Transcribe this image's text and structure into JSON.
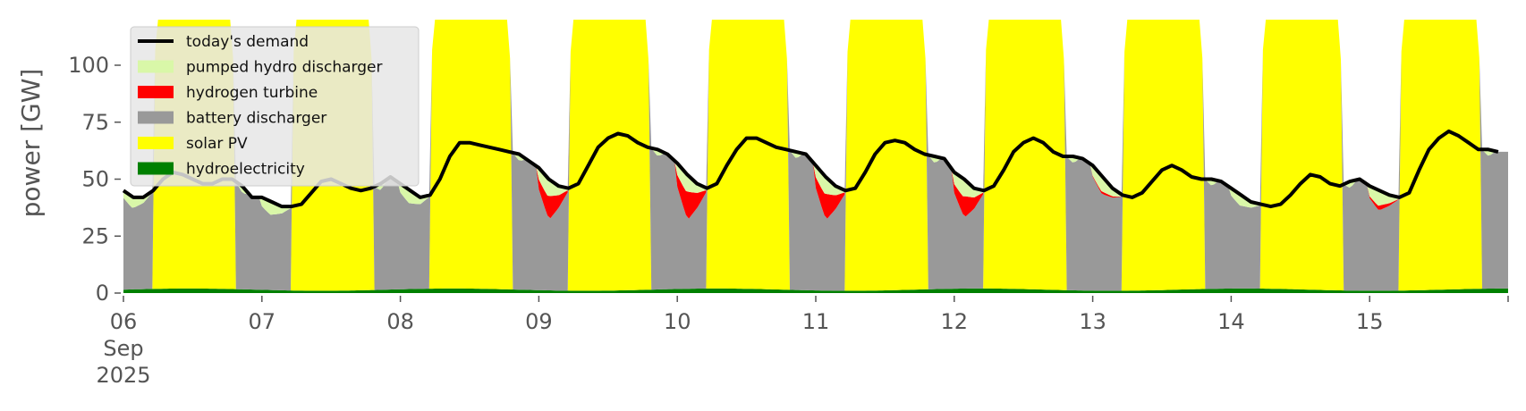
{
  "chart_data": {
    "type": "area",
    "title": "",
    "xlabel": "",
    "ylabel": "power [GW]",
    "ylim": [
      0,
      120
    ],
    "yticks": [
      0,
      25,
      50,
      75,
      100
    ],
    "x_start": "2025-09-06",
    "x_end": "2025-09-16",
    "x_tick_labels": [
      {
        "day": "06",
        "month": "Sep",
        "year": "2025"
      },
      {
        "day": "07"
      },
      {
        "day": "08"
      },
      {
        "day": "09"
      },
      {
        "day": "10"
      },
      {
        "day": "11"
      },
      {
        "day": "12"
      },
      {
        "day": "13"
      },
      {
        "day": "14"
      },
      {
        "day": "15"
      }
    ],
    "grid": false,
    "legend_position": "top-left",
    "stack_order": [
      "hydroelectricity",
      "solar PV",
      "battery discharger",
      "hydrogen turbine",
      "pumped hydro discharger"
    ],
    "series": [
      {
        "name": "today's demand",
        "kind": "line",
        "color": "#000000"
      },
      {
        "name": "pumped hydro discharger",
        "kind": "area",
        "color": "#d9f7a8"
      },
      {
        "name": "hydrogen turbine",
        "kind": "area",
        "color": "#ff0000"
      },
      {
        "name": "battery discharger",
        "kind": "area",
        "color": "#999999"
      },
      {
        "name": "solar PV",
        "kind": "area",
        "color": "#ffff00"
      },
      {
        "name": "hydroelectricity",
        "kind": "area",
        "color": "#008000"
      }
    ],
    "daily": [
      {
        "date": "2025-09-06",
        "demand": [
          45,
          42,
          42,
          45,
          50,
          53,
          52,
          50,
          48,
          48,
          50,
          50,
          47,
          42
        ],
        "hydrogen": 0,
        "pumped": 5
      },
      {
        "date": "2025-09-07",
        "demand": [
          42,
          40,
          38,
          38,
          39,
          44,
          49,
          50,
          48,
          46,
          45,
          46,
          48,
          51
        ],
        "hydrogen": 0,
        "pumped": 6
      },
      {
        "date": "2025-09-08",
        "demand": [
          48,
          45,
          42,
          43,
          50,
          60,
          66,
          66,
          65,
          64,
          63,
          62,
          61,
          58
        ],
        "hydrogen": 0,
        "pumped": 6
      },
      {
        "date": "2025-09-09",
        "demand": [
          55,
          50,
          47,
          46,
          48,
          56,
          64,
          68,
          70,
          69,
          66,
          64,
          63,
          61
        ],
        "hydrogen": 10,
        "pumped": 8
      },
      {
        "date": "2025-09-10",
        "demand": [
          57,
          52,
          48,
          46,
          48,
          56,
          63,
          68,
          68,
          66,
          64,
          63,
          62,
          61
        ],
        "hydrogen": 12,
        "pumped": 8
      },
      {
        "date": "2025-09-11",
        "demand": [
          56,
          51,
          47,
          45,
          46,
          53,
          61,
          66,
          67,
          66,
          63,
          61,
          60,
          59
        ],
        "hydrogen": 11,
        "pumped": 8
      },
      {
        "date": "2025-09-12",
        "demand": [
          53,
          50,
          46,
          45,
          47,
          54,
          62,
          66,
          68,
          66,
          62,
          60,
          60,
          59
        ],
        "hydrogen": 9,
        "pumped": 8
      },
      {
        "date": "2025-09-13",
        "demand": [
          56,
          51,
          46,
          43,
          42,
          44,
          49,
          54,
          56,
          54,
          51,
          50,
          50,
          49
        ],
        "hydrogen": 1,
        "pumped": 7
      },
      {
        "date": "2025-09-14",
        "demand": [
          46,
          43,
          40,
          39,
          38,
          39,
          43,
          48,
          52,
          51,
          48,
          47,
          49,
          50
        ],
        "hydrogen": 0,
        "pumped": 5
      },
      {
        "date": "2025-09-15",
        "demand": [
          47,
          45,
          43,
          42,
          44,
          54,
          63,
          68,
          71,
          69,
          66,
          63,
          63,
          62
        ],
        "hydrogen": 2,
        "pumped": 7
      }
    ]
  }
}
